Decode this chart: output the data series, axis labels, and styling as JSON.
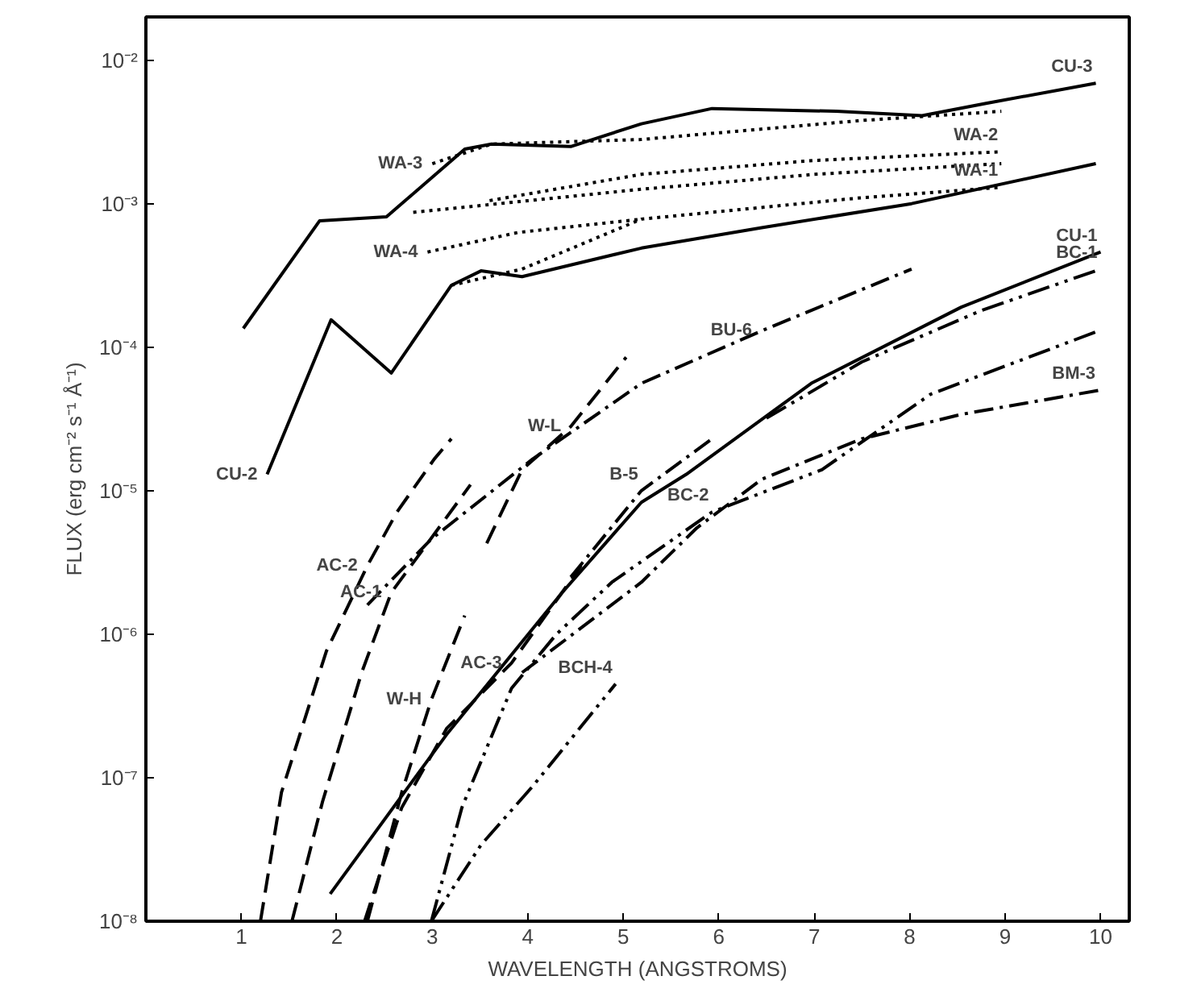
{
  "chart_data": {
    "type": "line",
    "xlabel": "WAVELENGTH (ANGSTROMS)",
    "ylabel": "FLUX (erg cm⁻² s⁻¹ Å⁻¹)",
    "log": "y",
    "grid": false,
    "marker": "none",
    "xlim": [
      0,
      10.3
    ],
    "xticks": [
      1,
      2,
      3,
      4,
      5,
      6,
      7,
      8,
      9,
      10
    ],
    "ylim": [
      1e-08,
      0.02
    ],
    "yticks": [
      {
        "value": 1e-08,
        "label": "10⁻⁸"
      },
      {
        "value": 1e-07,
        "label": "10⁻⁷"
      },
      {
        "value": 1e-06,
        "label": "10⁻⁶"
      },
      {
        "value": 1e-05,
        "label": "10⁻⁵"
      },
      {
        "value": 0.0001,
        "label": "10⁻⁴"
      },
      {
        "value": 0.001,
        "label": "10⁻³"
      },
      {
        "value": 0.01,
        "label": "10⁻²"
      }
    ],
    "series": [
      {
        "color": "#000000",
        "line_style": "solid",
        "x": [
          1.02,
          1.82,
          2.52,
          3.34,
          3.62,
          4.45,
          5.19,
          5.93,
          7.23,
          8.13,
          8.8,
          9.95
        ],
        "values": [
          0.000135,
          0.00076,
          0.00081,
          0.0024,
          0.0026,
          0.0025,
          0.0036,
          0.0046,
          0.0044,
          0.0041,
          0.005,
          0.0069
        ]
      },
      {
        "color": "#000000",
        "line_style": "solid",
        "x": [
          1.27,
          1.94,
          2.57,
          3.2,
          3.51,
          3.94,
          5.19,
          6.45,
          8.02,
          9.95
        ],
        "values": [
          1.3e-05,
          0.000155,
          6.6e-05,
          0.00027,
          0.00034,
          0.00031,
          0.00049,
          0.00068,
          0.001,
          0.0019
        ]
      },
      {
        "color": "#000000",
        "line_style": "dotted",
        "x": [
          3.0,
          3.62,
          5.19,
          7.5,
          8.96
        ],
        "values": [
          0.0019,
          0.0026,
          0.0028,
          0.0038,
          0.0044
        ]
      },
      {
        "color": "#000000",
        "line_style": "dotted",
        "x": [
          3.6,
          5.19,
          7.0,
          8.96
        ],
        "values": [
          0.00105,
          0.0016,
          0.002,
          0.0023
        ]
      },
      {
        "color": "#000000",
        "line_style": "dotted",
        "x": [
          2.8,
          5.19,
          7.0,
          8.96
        ],
        "values": [
          0.00087,
          0.00126,
          0.0016,
          0.0019
        ]
      },
      {
        "color": "#000000",
        "line_style": "dotted",
        "x": [
          2.95,
          3.9,
          5.19
        ],
        "values": [
          0.00046,
          0.00063,
          0.00078
        ]
      },
      {
        "color": "#000000",
        "line_style": "dotted",
        "x": [
          3.2,
          3.94,
          5.19,
          7.5,
          8.96
        ],
        "values": [
          0.00027,
          0.00035,
          0.00078,
          0.0011,
          0.0013
        ]
      },
      {
        "color": "#000000",
        "line_style": "dashed",
        "x": [
          1.2,
          1.42,
          1.89,
          2.32,
          2.63,
          3.02,
          3.2
        ],
        "values": [
          1e-08,
          7.9e-08,
          7.6e-07,
          3e-06,
          7.1e-06,
          1.66e-05,
          2.3e-05
        ]
      },
      {
        "color": "#000000",
        "line_style": "dashed",
        "x": [
          1.53,
          1.85,
          2.26,
          2.57,
          2.95,
          3.4
        ],
        "values": [
          1e-08,
          6.8e-08,
          5.4e-07,
          1.95e-06,
          4.3e-06,
          1.1e-05
        ]
      },
      {
        "color": "#000000",
        "line_style": "dashed",
        "x": [
          2.32,
          2.68,
          2.99,
          3.34
        ],
        "values": [
          1e-08,
          7.9e-08,
          3.5e-07,
          1.35e-06
        ]
      },
      {
        "color": "#000000",
        "line_style": "dashed",
        "x": [
          3.57,
          3.94,
          4.45,
          5.03
        ],
        "values": [
          4.3e-06,
          1.4e-05,
          2.8e-05,
          8.5e-05
        ]
      },
      {
        "color": "#000000",
        "line_style": "dashdot",
        "x": [
          2.32,
          2.99,
          4.05,
          5.19,
          6.45,
          8.02
        ],
        "values": [
          1.6e-06,
          4.6e-06,
          1.66e-05,
          5.6e-05,
          0.00013,
          0.00035
        ]
      },
      {
        "color": "#000000",
        "line_style": "solid",
        "x": [
          1.93,
          3.15,
          4.36,
          5.19,
          5.66,
          6.97,
          8.54,
          10.0
        ],
        "values": [
          1.55e-08,
          2e-07,
          1.95e-06,
          8.3e-06,
          1.3e-05,
          5.6e-05,
          0.00019,
          0.00046
        ]
      },
      {
        "color": "#000000",
        "line_style": "dashed",
        "x": [
          2.29,
          2.68,
          3.15,
          3.83,
          4.56
        ],
        "values": [
          1e-08,
          6.2e-08,
          2.2e-07,
          6.3e-07,
          3e-06
        ]
      },
      {
        "color": "#000000",
        "line_style": "dashdot",
        "x": [
          4.45,
          5.19,
          5.93
        ],
        "values": [
          2.5e-06,
          1e-05,
          2.3e-05
        ]
      },
      {
        "color": "#000000",
        "line_style": "dashdotdot",
        "x": [
          6.5,
          7.5,
          8.75,
          10.0
        ],
        "values": [
          3.2e-05,
          7.9e-05,
          0.00018,
          0.00035
        ]
      },
      {
        "color": "#000000",
        "line_style": "dashdotdot",
        "x": [
          2.99,
          3.31,
          3.83,
          4.3,
          4.88,
          5.93,
          7.08,
          8.22,
          9.98
        ],
        "values": [
          1e-08,
          6.2e-08,
          4.2e-07,
          1e-06,
          2.3e-06,
          7.1e-06,
          1.4e-05,
          4.7e-05,
          0.00013
        ]
      },
      {
        "color": "#000000",
        "line_style": "dashdot",
        "x": [
          3.94,
          5.19,
          5.77,
          6.45,
          7.5,
          8.54,
          9.98
        ],
        "values": [
          5.4e-07,
          2.3e-06,
          5.5e-06,
          1.2e-05,
          2.3e-05,
          3.4e-05,
          5e-05
        ]
      },
      {
        "color": "#000000",
        "line_style": "dashdotdot",
        "x": [
          2.99,
          3.51,
          4.05,
          4.92
        ],
        "values": [
          1e-08,
          3.4e-08,
          8.7e-08,
          4.5e-07
        ]
      }
    ],
    "annotations": [
      {
        "text": "CU-3",
        "x": 9.95,
        "y": 0.0069
      },
      {
        "text": "WA-3",
        "x": 3.0,
        "y": 0.0019
      },
      {
        "text": "WA-2",
        "x": 8.96,
        "y": 0.0023
      },
      {
        "text": "WA-1",
        "x": 8.96,
        "y": 0.0013
      },
      {
        "text": "WA-4",
        "x": 2.95,
        "y": 0.00046
      },
      {
        "text": "CU-2",
        "x": 1.27,
        "y": 1.3e-05
      },
      {
        "text": "CU-1",
        "x": 10.0,
        "y": 0.00046
      },
      {
        "text": "BC-1",
        "x": 10.0,
        "y": 0.00035
      },
      {
        "text": "BU-6",
        "x": 6.45,
        "y": 0.00013
      },
      {
        "text": "W-L",
        "x": 4.45,
        "y": 2.8e-05
      },
      {
        "text": "B-5",
        "x": 5.19,
        "y": 1e-05
      },
      {
        "text": "BM-3",
        "x": 9.98,
        "y": 5e-05
      },
      {
        "text": "BC-2",
        "x": 5.93,
        "y": 7.1e-06
      },
      {
        "text": "AC-2",
        "x": 2.32,
        "y": 3e-06
      },
      {
        "text": "AC-1",
        "x": 2.57,
        "y": 1.95e-06
      },
      {
        "text": "W-H",
        "x": 2.99,
        "y": 3.5e-07
      },
      {
        "text": "AC-3",
        "x": 3.83,
        "y": 6.3e-07
      },
      {
        "text": "BCH-4",
        "x": 4.92,
        "y": 4.5e-07
      }
    ]
  }
}
